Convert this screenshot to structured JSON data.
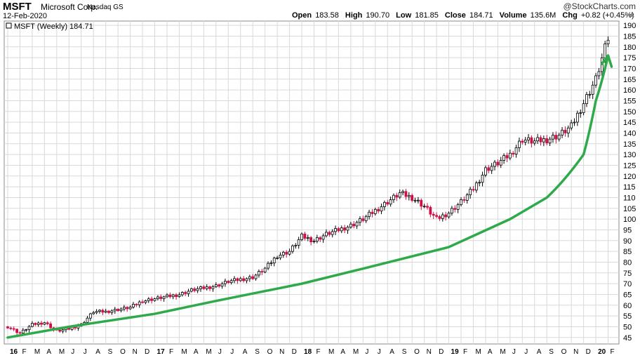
{
  "header": {
    "ticker": "MSFT",
    "company": "Microsoft Corp.",
    "exchange": "Nasdaq GS",
    "date": "12-Feb-2020",
    "brand": "@StockCharts.com",
    "open_label": "Open",
    "open": "183.58",
    "high_label": "High",
    "high": "190.70",
    "low_label": "Low",
    "low": "181.85",
    "close_label": "Close",
    "close": "184.71",
    "volume_label": "Volume",
    "volume": "135.6M",
    "chg_label": "Chg",
    "chg": "+0.82 (+0.45%)"
  },
  "legend": "MSFT (Weekly) 184.71",
  "colors": {
    "up": "#000000",
    "down": "#cc1144",
    "trend": "#2eaa4a",
    "grid": "#d9d9d9"
  },
  "chart_data": {
    "type": "line",
    "title": "",
    "ylim": [
      42,
      192
    ],
    "yticks": [
      45,
      50,
      55,
      60,
      65,
      70,
      75,
      80,
      85,
      90,
      95,
      100,
      105,
      110,
      115,
      120,
      125,
      130,
      135,
      140,
      145,
      150,
      155,
      160,
      165,
      170,
      175,
      180,
      185,
      190
    ],
    "xtick_labels": [
      "16",
      "F",
      "M",
      "A",
      "M",
      "J",
      "J",
      "A",
      "S",
      "O",
      "N",
      "D",
      "17",
      "F",
      "M",
      "A",
      "M",
      "J",
      "J",
      "A",
      "S",
      "O",
      "N",
      "D",
      "18",
      "F",
      "M",
      "A",
      "M",
      "J",
      "J",
      "A",
      "S",
      "O",
      "N",
      "D",
      "19",
      "F",
      "M",
      "A",
      "M",
      "J",
      "J",
      "A",
      "S",
      "O",
      "N",
      "D",
      "20",
      "F"
    ],
    "bold_labels": [
      "16",
      "17",
      "18",
      "19",
      "20"
    ],
    "series": [
      {
        "x": [
          "2016-01",
          "2016-02",
          "2016-03",
          "2016-04",
          "2016-05",
          "2016-06",
          "2016-07",
          "2016-08",
          "2016-09",
          "2016-10",
          "2016-11",
          "2016-12",
          "2017-01",
          "2017-02",
          "2017-03",
          "2017-04",
          "2017-05",
          "2017-06",
          "2017-07",
          "2017-08",
          "2017-09",
          "2017-10",
          "2017-11",
          "2017-12",
          "2018-01",
          "2018-02",
          "2018-03",
          "2018-04",
          "2018-05",
          "2018-06",
          "2018-07",
          "2018-08",
          "2018-09",
          "2018-10",
          "2018-11",
          "2018-12",
          "2019-01",
          "2019-02",
          "2019-03",
          "2019-04",
          "2019-05",
          "2019-06",
          "2019-07",
          "2019-08",
          "2019-09",
          "2019-10",
          "2019-11",
          "2019-12",
          "2020-01",
          "2020-02"
        ],
        "values": [
          50,
          47,
          51,
          52,
          48,
          49,
          51,
          57,
          57,
          58,
          59,
          62,
          63,
          64,
          65,
          67,
          68,
          69,
          71,
          72,
          73,
          77,
          83,
          85,
          92,
          90,
          93,
          95,
          97,
          100,
          104,
          108,
          112,
          110,
          106,
          100,
          103,
          108,
          114,
          123,
          126,
          130,
          137,
          136,
          137,
          139,
          143,
          154,
          165,
          184
        ]
      },
      {
        "x": [
          "2016-01",
          "2016-06",
          "2017-01",
          "2017-06",
          "2018-01",
          "2018-06",
          "2019-01",
          "2019-06",
          "2019-09",
          "2019-12",
          "2020-01",
          "2020-02"
        ],
        "values": [
          45,
          50,
          56,
          62,
          70,
          77,
          87,
          100,
          110,
          130,
          155,
          176
        ]
      }
    ]
  }
}
